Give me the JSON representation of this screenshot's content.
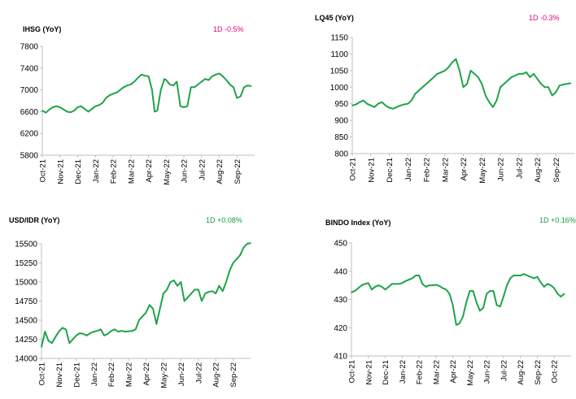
{
  "colors": {
    "line": "#1fa34a",
    "axis": "#bfbfbf",
    "text": "#000000",
    "neg": "#e6007e",
    "pos": "#1a9a3c"
  },
  "chart_data": [
    {
      "type": "line",
      "title": "IHSG (YoY)",
      "change": "1D -0.5%",
      "change_sign": "neg",
      "ylim": [
        5800,
        7800
      ],
      "yticks": [
        5800,
        6200,
        6600,
        7000,
        7400,
        7800
      ],
      "xlim": [
        0,
        12
      ],
      "xticks": [
        "Oct-21",
        "Nov-21",
        "Dec-21",
        "Jan-22",
        "Feb-22",
        "Mar-22",
        "Apr-22",
        "May-22",
        "Jun-22",
        "Jul-22",
        "Aug-22",
        "Sep-22"
      ],
      "x": [
        0,
        0.2,
        0.4,
        0.6,
        0.8,
        1.0,
        1.2,
        1.4,
        1.6,
        1.8,
        2.0,
        2.2,
        2.4,
        2.6,
        2.8,
        3.0,
        3.2,
        3.4,
        3.6,
        3.8,
        4.0,
        4.2,
        4.4,
        4.6,
        4.8,
        5.0,
        5.2,
        5.4,
        5.6,
        5.8,
        6.0,
        6.2,
        6.35,
        6.5,
        6.7,
        6.9,
        7.0,
        7.2,
        7.4,
        7.6,
        7.8,
        8.0,
        8.2,
        8.4,
        8.6,
        8.8,
        9.0,
        9.2,
        9.4,
        9.6,
        9.8,
        10.0,
        10.2,
        10.4,
        10.6,
        10.8,
        11.0,
        11.2,
        11.4,
        11.6,
        11.8
      ],
      "y": [
        6620,
        6580,
        6640,
        6680,
        6700,
        6680,
        6640,
        6600,
        6590,
        6620,
        6680,
        6700,
        6650,
        6600,
        6650,
        6700,
        6720,
        6760,
        6850,
        6900,
        6930,
        6950,
        7000,
        7050,
        7080,
        7100,
        7150,
        7220,
        7280,
        7260,
        7250,
        7000,
        6600,
        6620,
        7000,
        7200,
        7180,
        7100,
        7080,
        7150,
        6700,
        6680,
        6700,
        7050,
        7050,
        7100,
        7150,
        7200,
        7180,
        7250,
        7280,
        7300,
        7250,
        7180,
        7100,
        7050,
        6850,
        6880,
        7050,
        7080,
        7070
      ]
    },
    {
      "type": "line",
      "title": "LQ45 (YoY)",
      "change": "1D -0.3%",
      "change_sign": "neg",
      "ylim": [
        800,
        1150
      ],
      "yticks": [
        800,
        850,
        900,
        950,
        1000,
        1050,
        1100,
        1150
      ],
      "xlim": [
        0,
        12
      ],
      "xticks": [
        "Oct-21",
        "Nov-21",
        "Dec-21",
        "Jan-22",
        "Feb-22",
        "Mar-22",
        "Apr-22",
        "May-22",
        "Jun-22",
        "Jul-22",
        "Aug-22",
        "Sep-22"
      ],
      "x": [
        0,
        0.2,
        0.4,
        0.6,
        0.8,
        1.0,
        1.2,
        1.4,
        1.6,
        1.8,
        2.0,
        2.2,
        2.4,
        2.6,
        2.8,
        3.0,
        3.2,
        3.4,
        3.6,
        3.8,
        4.0,
        4.2,
        4.4,
        4.6,
        4.8,
        5.0,
        5.2,
        5.4,
        5.6,
        5.8,
        6.0,
        6.2,
        6.4,
        6.6,
        6.8,
        7.0,
        7.2,
        7.4,
        7.6,
        7.8,
        8.0,
        8.2,
        8.4,
        8.6,
        8.8,
        9.0,
        9.2,
        9.4,
        9.6,
        9.8,
        10.0,
        10.2,
        10.4,
        10.6,
        10.8,
        11.0,
        11.2,
        11.4,
        11.6,
        11.8
      ],
      "y": [
        945,
        948,
        955,
        960,
        950,
        945,
        940,
        950,
        955,
        945,
        938,
        935,
        940,
        945,
        948,
        950,
        960,
        980,
        990,
        1000,
        1010,
        1020,
        1030,
        1040,
        1045,
        1050,
        1060,
        1075,
        1085,
        1050,
        1000,
        1010,
        1050,
        1040,
        1030,
        1010,
        975,
        955,
        940,
        960,
        1000,
        1010,
        1020,
        1030,
        1035,
        1040,
        1040,
        1045,
        1030,
        1040,
        1025,
        1010,
        1000,
        1000,
        975,
        985,
        1005,
        1008,
        1010,
        1012
      ]
    },
    {
      "type": "line",
      "title": "USD/IDR  (YoY)",
      "change": "1D +0.08%",
      "change_sign": "pos",
      "ylim": [
        14000,
        15500
      ],
      "yticks": [
        14000,
        14250,
        14500,
        14750,
        15000,
        15250,
        15500
      ],
      "xlim": [
        0,
        12
      ],
      "xticks": [
        "Oct-21",
        "Nov-21",
        "Dec-21",
        "Jan-22",
        "Feb-22",
        "Mar-22",
        "Apr-22",
        "May-22",
        "Jun-22",
        "Jul-22",
        "Aug-22",
        "Sep-22"
      ],
      "x": [
        0,
        0.2,
        0.4,
        0.6,
        0.8,
        1.0,
        1.2,
        1.4,
        1.6,
        1.8,
        2.0,
        2.2,
        2.4,
        2.6,
        2.8,
        3.0,
        3.2,
        3.4,
        3.6,
        3.8,
        4.0,
        4.2,
        4.4,
        4.6,
        4.8,
        5.0,
        5.2,
        5.4,
        5.6,
        5.8,
        6.0,
        6.2,
        6.4,
        6.6,
        6.8,
        7.0,
        7.2,
        7.4,
        7.6,
        7.8,
        8.0,
        8.2,
        8.4,
        8.6,
        8.8,
        9.0,
        9.2,
        9.4,
        9.6,
        9.8,
        10.0,
        10.2,
        10.4,
        10.6,
        10.8,
        11.0,
        11.2,
        11.4,
        11.6,
        11.8,
        12.0
      ],
      "y": [
        14150,
        14350,
        14230,
        14200,
        14280,
        14350,
        14400,
        14380,
        14200,
        14250,
        14300,
        14330,
        14320,
        14300,
        14330,
        14350,
        14360,
        14380,
        14300,
        14320,
        14360,
        14380,
        14350,
        14360,
        14350,
        14355,
        14360,
        14380,
        14500,
        14550,
        14600,
        14700,
        14650,
        14450,
        14650,
        14850,
        14900,
        15000,
        15020,
        14950,
        15000,
        14750,
        14800,
        14850,
        14900,
        14900,
        14750,
        14850,
        14870,
        14880,
        14850,
        14950,
        14880,
        15000,
        15150,
        15250,
        15300,
        15350,
        15450,
        15500,
        15510
      ]
    },
    {
      "type": "line",
      "title": "BINDO Index (YoY)",
      "change": "1D +0.16%",
      "change_sign": "pos",
      "ylim": [
        410,
        450
      ],
      "yticks": [
        410,
        420,
        430,
        440,
        450
      ],
      "xlim": [
        0,
        13
      ],
      "xticks": [
        "Oct-21",
        "Nov-21",
        "Dec-21",
        "Jan-22",
        "Feb-22",
        "Mar-22",
        "Apr-22",
        "May-22",
        "Jun-22",
        "Jul-22",
        "Aug-22",
        "Sep-22",
        "Oct-22"
      ],
      "x": [
        0,
        0.2,
        0.4,
        0.6,
        0.8,
        1.0,
        1.2,
        1.4,
        1.6,
        1.8,
        2.0,
        2.2,
        2.4,
        2.6,
        2.8,
        3.0,
        3.2,
        3.4,
        3.6,
        3.8,
        4.0,
        4.2,
        4.4,
        4.6,
        4.8,
        5.0,
        5.2,
        5.4,
        5.6,
        5.8,
        6.0,
        6.2,
        6.4,
        6.6,
        6.8,
        7.0,
        7.2,
        7.4,
        7.6,
        7.8,
        8.0,
        8.2,
        8.4,
        8.6,
        8.8,
        9.0,
        9.2,
        9.4,
        9.6,
        9.8,
        10.0,
        10.2,
        10.4,
        10.6,
        10.8,
        11.0,
        11.2,
        11.4,
        11.6,
        11.8,
        12.0,
        12.2,
        12.4,
        12.6
      ],
      "y": [
        432.5,
        433,
        434,
        435,
        435.5,
        435.8,
        433.5,
        434.5,
        435,
        434.5,
        433.5,
        434.5,
        435.5,
        435.5,
        435.5,
        435.8,
        436.5,
        437,
        437.5,
        438.5,
        438.5,
        435.5,
        434.5,
        435,
        435,
        435.2,
        434.8,
        434,
        433.5,
        432,
        428,
        421,
        421.5,
        424,
        429,
        433,
        433,
        429,
        426,
        427,
        432,
        433,
        433,
        428,
        427.5,
        431,
        435,
        437.5,
        438.5,
        438.5,
        438.5,
        439,
        438.5,
        438,
        437.5,
        438,
        436,
        434.5,
        435.5,
        435,
        434,
        432,
        431,
        432
      ]
    }
  ]
}
